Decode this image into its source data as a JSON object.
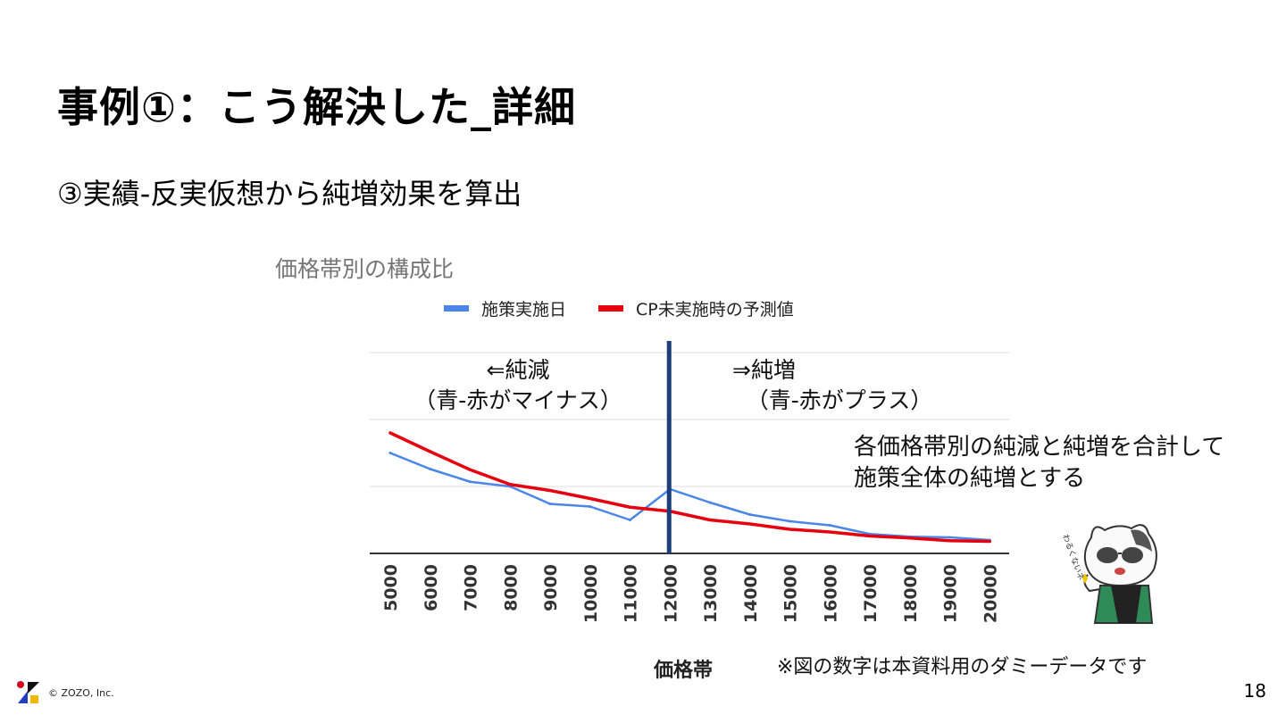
{
  "slide": {
    "title": "事例①：こう解決した_詳細",
    "subtitle": "③実績-反実仮想から純増効果を算出",
    "page_number": "18",
    "copyright": "© ZOZO, Inc."
  },
  "annotations": {
    "left_line1": "⇐純減",
    "left_line2": "（青-赤がマイナス）",
    "right_line1": "⇒純増",
    "right_line2": "（青-赤がプラス）",
    "summary_line1": "各価格帯別の純減と純増を合計して",
    "summary_line2": "施策全体の純増とする",
    "footnote": "※図の数字は本資料用のダミーデータです",
    "mascot_text": "わるくないネ"
  },
  "chart_data": {
    "type": "line",
    "title": "価格帯別の構成比",
    "xlabel": "価格帯",
    "ylabel": "",
    "categories": [
      "5000",
      "6000",
      "7000",
      "8000",
      "9000",
      "10000",
      "11000",
      "12000",
      "13000",
      "14000",
      "15000",
      "16000",
      "17000",
      "18000",
      "19000",
      "20000"
    ],
    "series": [
      {
        "name": "施策実施日",
        "color": "#4a86e8",
        "values": [
          15.0,
          12.6,
          10.7,
          10.0,
          7.4,
          7.0,
          5.0,
          9.6,
          7.6,
          5.8,
          4.8,
          4.2,
          2.9,
          2.5,
          2.4,
          2.0
        ]
      },
      {
        "name": "CP未実施時の予測値",
        "color": "#e6000f",
        "values": [
          18.0,
          15.2,
          12.5,
          10.3,
          9.4,
          8.2,
          6.9,
          6.3,
          5.0,
          4.4,
          3.6,
          3.2,
          2.6,
          2.3,
          1.9,
          1.8
        ]
      }
    ],
    "divider_at": "12000",
    "divider_color": "#1c3f7a",
    "ylim": [
      0,
      30
    ],
    "grid": true,
    "legend_position": "top"
  }
}
